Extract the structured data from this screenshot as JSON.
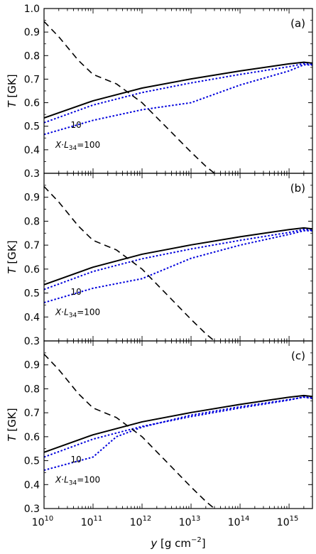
{
  "chart_data": {
    "type": "line",
    "xlabel": "y [g cm^-2]",
    "ylabel": "T [GK]",
    "xscale": "log",
    "xlim": [
      10000000000.0,
      3000000000000000.0
    ],
    "ylim": [
      0.3,
      1.0
    ],
    "x_tick_labels": [
      "10^10",
      "10^11",
      "10^12",
      "10^13",
      "10^14",
      "10^15"
    ],
    "y_ticks_top": [
      0.3,
      0.4,
      0.5,
      0.6,
      0.7,
      0.8,
      0.9,
      1.0
    ],
    "y_ticks": [
      0.3,
      0.4,
      0.5,
      0.6,
      0.7,
      0.8,
      0.9
    ],
    "annotations": [
      "10",
      "X·L34=100"
    ],
    "panels": [
      {
        "label": "(a)",
        "series": [
          {
            "style": "solid",
            "color": "#000000",
            "x": [
              10000000000.0,
              100000000000.0,
              1000000000000.0,
              10000000000000.0,
              100000000000000.0,
              1000000000000000.0,
              2000000000000000.0,
              3000000000000000.0
            ],
            "y": [
              0.535,
              0.608,
              0.662,
              0.701,
              0.735,
              0.765,
              0.772,
              0.768
            ]
          },
          {
            "style": "dotted",
            "color": "#0000dd",
            "x": [
              10000000000.0,
              100000000000.0,
              1000000000000.0,
              10000000000000.0,
              100000000000000.0,
              1000000000000000.0,
              2000000000000000.0,
              3000000000000000.0
            ],
            "y": [
              0.515,
              0.59,
              0.643,
              0.684,
              0.72,
              0.753,
              0.766,
              0.762
            ]
          },
          {
            "style": "dotted",
            "color": "#0000dd",
            "x": [
              10000000000.0,
              100000000000.0,
              1000000000000.0,
              10000000000000.0,
              100000000000000.0,
              1000000000000000.0,
              2000000000000000.0,
              3000000000000000.0
            ],
            "y": [
              0.465,
              0.525,
              0.57,
              0.6,
              0.675,
              0.735,
              0.761,
              0.76
            ]
          },
          {
            "style": "dashed",
            "color": "#000000",
            "x": [
              10000000000.0,
              20000000000.0,
              50000000000.0,
              100000000000.0,
              300000000000.0,
              1000000000000.0,
              3000000000000.0,
              10000000000000.0,
              20000000000000.0,
              30000000000000.0
            ],
            "y": [
              0.945,
              0.88,
              0.78,
              0.72,
              0.68,
              0.6,
              0.5,
              0.39,
              0.33,
              0.3
            ]
          }
        ]
      },
      {
        "label": "(b)",
        "series": [
          {
            "style": "solid",
            "color": "#000000",
            "x": [
              10000000000.0,
              100000000000.0,
              1000000000000.0,
              10000000000000.0,
              100000000000000.0,
              1000000000000000.0,
              2000000000000000.0,
              3000000000000000.0
            ],
            "y": [
              0.535,
              0.608,
              0.662,
              0.701,
              0.735,
              0.765,
              0.772,
              0.768
            ]
          },
          {
            "style": "dotted",
            "color": "#0000dd",
            "x": [
              10000000000.0,
              100000000000.0,
              1000000000000.0,
              10000000000000.0,
              100000000000000.0,
              1000000000000000.0,
              2000000000000000.0,
              3000000000000000.0
            ],
            "y": [
              0.515,
              0.59,
              0.643,
              0.684,
              0.72,
              0.753,
              0.766,
              0.762
            ]
          },
          {
            "style": "dotted",
            "color": "#0000dd",
            "x": [
              10000000000.0,
              100000000000.0,
              1000000000000.0,
              10000000000000.0,
              100000000000000.0,
              1000000000000000.0,
              2000000000000000.0,
              3000000000000000.0
            ],
            "y": [
              0.46,
              0.52,
              0.56,
              0.645,
              0.7,
              0.745,
              0.76,
              0.76
            ]
          },
          {
            "style": "dashed",
            "color": "#000000",
            "x": [
              10000000000.0,
              20000000000.0,
              50000000000.0,
              100000000000.0,
              300000000000.0,
              1000000000000.0,
              3000000000000.0,
              10000000000000.0,
              20000000000000.0,
              30000000000000.0
            ],
            "y": [
              0.945,
              0.88,
              0.78,
              0.72,
              0.68,
              0.6,
              0.5,
              0.39,
              0.33,
              0.3
            ]
          }
        ]
      },
      {
        "label": "(c)",
        "series": [
          {
            "style": "solid",
            "color": "#000000",
            "x": [
              10000000000.0,
              100000000000.0,
              1000000000000.0,
              10000000000000.0,
              100000000000000.0,
              1000000000000000.0,
              2000000000000000.0,
              3000000000000000.0
            ],
            "y": [
              0.535,
              0.608,
              0.662,
              0.701,
              0.735,
              0.765,
              0.772,
              0.768
            ]
          },
          {
            "style": "dotted",
            "color": "#0000dd",
            "x": [
              10000000000.0,
              100000000000.0,
              1000000000000.0,
              10000000000000.0,
              100000000000000.0,
              1000000000000000.0,
              2000000000000000.0,
              3000000000000000.0
            ],
            "y": [
              0.515,
              0.59,
              0.643,
              0.684,
              0.72,
              0.753,
              0.766,
              0.762
            ]
          },
          {
            "style": "dotted",
            "color": "#0000dd",
            "x": [
              10000000000.0,
              100000000000.0,
              300000000000.0,
              1000000000000.0,
              10000000000000.0,
              100000000000000.0,
              1000000000000000.0,
              2000000000000000.0,
              3000000000000000.0
            ],
            "y": [
              0.46,
              0.515,
              0.6,
              0.64,
              0.69,
              0.725,
              0.755,
              0.765,
              0.76
            ]
          },
          {
            "style": "dashed",
            "color": "#000000",
            "x": [
              10000000000.0,
              20000000000.0,
              50000000000.0,
              100000000000.0,
              300000000000.0,
              1000000000000.0,
              3000000000000.0,
              10000000000000.0,
              20000000000000.0,
              30000000000000.0
            ],
            "y": [
              0.945,
              0.88,
              0.78,
              0.72,
              0.68,
              0.6,
              0.5,
              0.39,
              0.33,
              0.3
            ]
          }
        ]
      }
    ]
  }
}
